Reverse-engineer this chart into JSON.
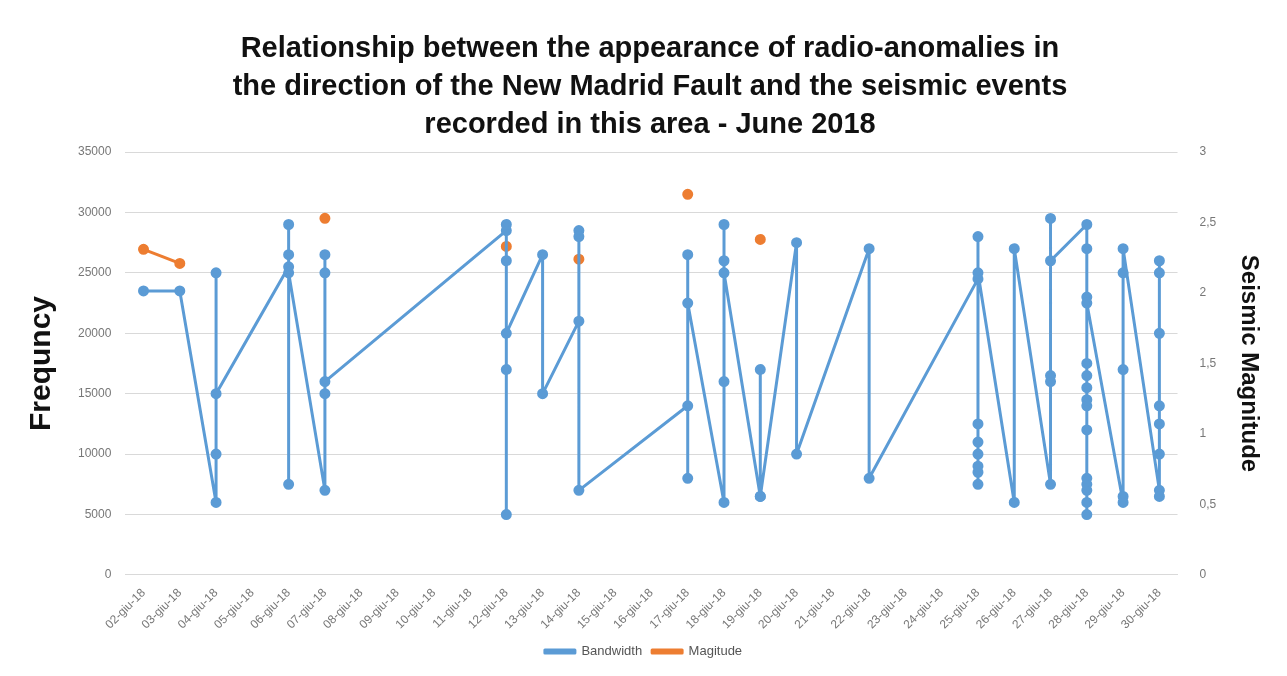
{
  "chart_data": {
    "type": "line",
    "title": "Relationship between the appearance of radio-anomalies in the direction of the New Madrid Fault and the seismic events recorded in this area - June 2018",
    "ylabel": "Frequncy",
    "y2label": "Seismic Magnitude",
    "xlim": [
      "2018-06-01T12:00",
      "2018-06-30T12:00"
    ],
    "xticks": [
      {
        "value": "2018-06-02",
        "label": "02-giu-18"
      },
      {
        "value": "2018-06-03",
        "label": "03-giu-18"
      },
      {
        "value": "2018-06-04",
        "label": "04-giu-18"
      },
      {
        "value": "2018-06-05",
        "label": "05-giu-18"
      },
      {
        "value": "2018-06-06",
        "label": "06-giu-18"
      },
      {
        "value": "2018-06-07",
        "label": "07-giu-18"
      },
      {
        "value": "2018-06-08",
        "label": "08-giu-18"
      },
      {
        "value": "2018-06-09",
        "label": "09-giu-18"
      },
      {
        "value": "2018-06-10",
        "label": "10-giu-18"
      },
      {
        "value": "2018-06-11",
        "label": "11-giu-18"
      },
      {
        "value": "2018-06-12",
        "label": "12-giu-18"
      },
      {
        "value": "2018-06-13",
        "label": "13-giu-18"
      },
      {
        "value": "2018-06-14",
        "label": "14-giu-18"
      },
      {
        "value": "2018-06-15",
        "label": "15-giu-18"
      },
      {
        "value": "2018-06-16",
        "label": "16-giu-18"
      },
      {
        "value": "2018-06-17",
        "label": "17-giu-18"
      },
      {
        "value": "2018-06-18",
        "label": "18-giu-18"
      },
      {
        "value": "2018-06-19",
        "label": "19-giu-18"
      },
      {
        "value": "2018-06-20",
        "label": "20-giu-18"
      },
      {
        "value": "2018-06-21",
        "label": "21-giu-18"
      },
      {
        "value": "2018-06-22",
        "label": "22-giu-18"
      },
      {
        "value": "2018-06-23",
        "label": "23-giu-18"
      },
      {
        "value": "2018-06-24",
        "label": "24-giu-18"
      },
      {
        "value": "2018-06-25",
        "label": "25-giu-18"
      },
      {
        "value": "2018-06-26",
        "label": "26-giu-18"
      },
      {
        "value": "2018-06-27",
        "label": "27-giu-18"
      },
      {
        "value": "2018-06-28",
        "label": "28-giu-18"
      },
      {
        "value": "2018-06-29",
        "label": "29-giu-18"
      },
      {
        "value": "2018-06-30",
        "label": "30-giu-18"
      }
    ],
    "ylim": [
      0,
      35000
    ],
    "yticks": [
      0,
      5000,
      10000,
      15000,
      20000,
      25000,
      30000,
      35000
    ],
    "y2lim": [
      0,
      3
    ],
    "y2ticks": [
      0,
      {
        "value": 0.5,
        "label": "0,5"
      },
      1,
      {
        "value": 1.5,
        "label": "1,5"
      },
      2,
      {
        "value": 2.5,
        "label": "2,5"
      },
      3
    ],
    "grid": "y",
    "legend": "bottom",
    "marker": "circle",
    "line_style": "solid",
    "series": [
      {
        "name": "Bandwidth",
        "color": "#5b9bd5",
        "x": [
          "2018-06-02",
          "2018-06-03",
          "2018-06-04",
          "2018-06-04",
          "2018-06-04",
          "2018-06-04",
          "2018-06-06",
          "2018-06-06",
          "2018-06-06",
          "2018-06-06",
          "2018-06-06",
          "2018-06-07",
          "2018-06-07",
          "2018-06-07",
          "2018-06-07",
          "2018-06-07",
          "2018-06-12",
          "2018-06-12",
          "2018-06-12",
          "2018-06-12",
          "2018-06-12",
          "2018-06-12",
          "2018-06-13",
          "2018-06-13",
          "2018-06-14",
          "2018-06-14",
          "2018-06-14",
          "2018-06-14",
          "2018-06-17",
          "2018-06-17",
          "2018-06-17",
          "2018-06-17",
          "2018-06-18",
          "2018-06-18",
          "2018-06-18",
          "2018-06-18",
          "2018-06-18",
          "2018-06-19",
          "2018-06-19",
          "2018-06-19",
          "2018-06-20",
          "2018-06-20",
          "2018-06-22",
          "2018-06-22",
          "2018-06-25",
          "2018-06-25",
          "2018-06-25",
          "2018-06-25",
          "2018-06-25",
          "2018-06-25",
          "2018-06-25",
          "2018-06-25",
          "2018-06-25",
          "2018-06-26",
          "2018-06-26",
          "2018-06-27",
          "2018-06-27",
          "2018-06-27",
          "2018-06-27",
          "2018-06-27",
          "2018-06-28",
          "2018-06-28",
          "2018-06-28",
          "2018-06-28",
          "2018-06-28",
          "2018-06-28",
          "2018-06-28",
          "2018-06-28",
          "2018-06-28",
          "2018-06-28",
          "2018-06-28",
          "2018-06-28",
          "2018-06-28",
          "2018-06-28",
          "2018-06-28",
          "2018-06-29",
          "2018-06-29",
          "2018-06-29",
          "2018-06-29",
          "2018-06-29",
          "2018-06-30",
          "2018-06-30",
          "2018-06-30",
          "2018-06-30",
          "2018-06-30",
          "2018-06-30",
          "2018-06-30",
          "2018-06-30"
        ],
        "values": [
          23500,
          23500,
          6000,
          10000,
          25000,
          15000,
          25500,
          7500,
          29000,
          26500,
          25000,
          7000,
          26500,
          25000,
          15000,
          16000,
          28500,
          29000,
          5000,
          26000,
          17000,
          20000,
          26500,
          15000,
          21000,
          28500,
          28000,
          7000,
          14000,
          8000,
          26500,
          22500,
          6000,
          29000,
          16000,
          26000,
          25000,
          6500,
          17000,
          6500,
          27500,
          10000,
          27000,
          8000,
          24500,
          7500,
          8500,
          9000,
          10000,
          11000,
          12500,
          28000,
          25000,
          6000,
          27000,
          7500,
          16000,
          16500,
          29500,
          26000,
          29000,
          5000,
          6000,
          7000,
          7500,
          8000,
          12000,
          14000,
          14500,
          15500,
          16500,
          17500,
          27000,
          23000,
          22500,
          6000,
          6500,
          17000,
          25000,
          27000,
          7000,
          6500,
          10000,
          12500,
          14000,
          20000,
          25000,
          26000
        ]
      },
      {
        "name": "Magitude",
        "color": "#ed7d31",
        "axis": "y2",
        "x": [
          "2018-06-02",
          "2018-06-03",
          "2018-06-04",
          "2018-06-07",
          "2018-06-08",
          "2018-06-12",
          "2018-06-13",
          "2018-06-14",
          "2018-06-15",
          "2018-06-17",
          "2018-06-18",
          "2018-06-19"
        ],
        "values": [
          2.31,
          2.21,
          null,
          2.53,
          null,
          2.33,
          null,
          2.24,
          null,
          2.7,
          null,
          2.38
        ]
      }
    ]
  }
}
